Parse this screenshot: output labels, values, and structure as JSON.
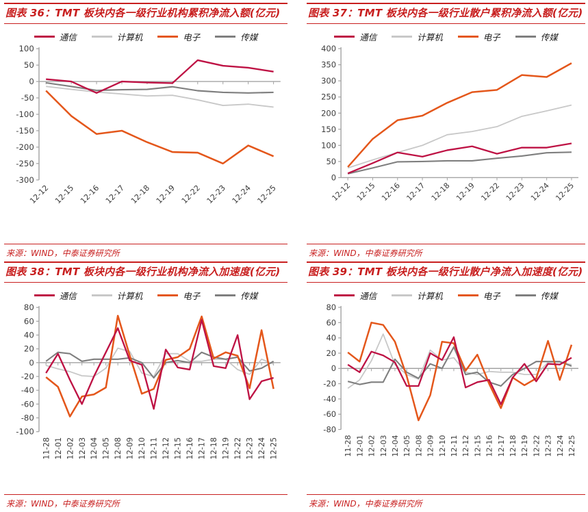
{
  "page": {
    "background": "#FFFFFF"
  },
  "colors": {
    "accent_red": "#C81E1E",
    "axis": "#A3A3A3",
    "tick_text": "#3D3D3D",
    "series": {
      "tongxin": "#BE1244",
      "jisuanji": "#C8C8C8",
      "dianzi": "#E4571B",
      "chuanmei": "#7F7F7F"
    }
  },
  "legend": [
    "通信",
    "计算机",
    "电子",
    "传媒"
  ],
  "source_label": "来源：WIND，中泰证券研究所",
  "chart_data": [
    {
      "id": "figure-36",
      "type": "line",
      "title": "图表 36：TMT 板块内各一级行业机构累积净流入额(亿元)",
      "xlabel": "",
      "ylabel": "",
      "grid": false,
      "legend_position": "top",
      "ylim": [
        -300,
        100
      ],
      "ystep": 50,
      "x_label_rotation": -45,
      "categories": [
        "12-12",
        "12-15",
        "12-16",
        "12-17",
        "12-18",
        "12-19",
        "12-22",
        "12-23",
        "12-24",
        "12-25"
      ],
      "series": [
        {
          "name": "通信",
          "color_key": "tongxin",
          "values": [
            7,
            0,
            -35,
            0,
            -3,
            -5,
            65,
            48,
            42,
            30
          ]
        },
        {
          "name": "计算机",
          "color_key": "jisuanji",
          "values": [
            -15,
            -24,
            -32,
            -38,
            -44,
            -42,
            -56,
            -73,
            -69,
            -78
          ]
        },
        {
          "name": "电子",
          "color_key": "dianzi",
          "values": [
            -28,
            -105,
            -160,
            -150,
            -185,
            -215,
            -217,
            -250,
            -195,
            -228
          ]
        },
        {
          "name": "传媒",
          "color_key": "chuanmei",
          "values": [
            -4,
            -15,
            -27,
            -25,
            -24,
            -16,
            -28,
            -33,
            -35,
            -33
          ]
        }
      ]
    },
    {
      "id": "figure-37",
      "type": "line",
      "title": "图表 37：TMT 板块内各一级行业散户累积净流入额(亿元)",
      "xlabel": "",
      "ylabel": "",
      "grid": false,
      "legend_position": "top",
      "ylim": [
        0,
        400
      ],
      "ystep": 50,
      "x_label_rotation": -45,
      "categories": [
        "12-12",
        "12-15",
        "12-16",
        "12-17",
        "12-18",
        "12-19",
        "12-22",
        "12-23",
        "12-24",
        "12-25"
      ],
      "series": [
        {
          "name": "通信",
          "color_key": "tongxin",
          "values": [
            13,
            45,
            78,
            65,
            85,
            97,
            74,
            93,
            93,
            106
          ]
        },
        {
          "name": "计算机",
          "color_key": "jisuanji",
          "values": [
            30,
            55,
            78,
            100,
            133,
            143,
            158,
            190,
            207,
            225
          ]
        },
        {
          "name": "电子",
          "color_key": "dianzi",
          "values": [
            33,
            120,
            178,
            192,
            232,
            265,
            272,
            318,
            312,
            355
          ]
        },
        {
          "name": "传媒",
          "color_key": "chuanmei",
          "values": [
            12,
            30,
            49,
            50,
            52,
            52,
            60,
            67,
            77,
            79
          ]
        }
      ]
    },
    {
      "id": "figure-38",
      "type": "line",
      "title": "图表 38：TMT 板块内各一级行业机构净流入加速度(亿元)",
      "xlabel": "",
      "ylabel": "",
      "grid": false,
      "legend_position": "top",
      "ylim": [
        -100,
        80
      ],
      "ystep": 20,
      "x_label_rotation": -90,
      "categories": [
        "11-28",
        "12-01",
        "12-02",
        "12-03",
        "12-04",
        "12-05",
        "12-08",
        "12-09",
        "12-10",
        "12-11",
        "12-12",
        "12-15",
        "12-16",
        "12-17",
        "12-18",
        "12-19",
        "12-22",
        "12-23",
        "12-24",
        "12-25"
      ],
      "series": [
        {
          "name": "通信",
          "color_key": "tongxin",
          "values": [
            -15,
            13,
            -25,
            -60,
            -20,
            15,
            50,
            3,
            -3,
            -67,
            19,
            -7,
            -10,
            62,
            -5,
            -8,
            40,
            -53,
            -27,
            -22
          ]
        },
        {
          "name": "计算机",
          "color_key": "jisuanji",
          "values": [
            -4,
            -9,
            -13,
            -19,
            -20,
            -8,
            21,
            16,
            -15,
            -20,
            13,
            13,
            2,
            2,
            5,
            5,
            -10,
            -17,
            5,
            -2
          ]
        },
        {
          "name": "电子",
          "color_key": "dianzi",
          "values": [
            -21,
            -35,
            -78,
            -49,
            -46,
            -36,
            68,
            10,
            -45,
            -38,
            4,
            8,
            20,
            67,
            6,
            15,
            10,
            -37,
            47,
            -38
          ]
        },
        {
          "name": "传媒",
          "color_key": "chuanmei",
          "values": [
            2,
            15,
            13,
            2,
            5,
            5,
            5,
            7,
            0,
            -22,
            0,
            3,
            0,
            15,
            8,
            5,
            8,
            -12,
            -8,
            2
          ]
        }
      ]
    },
    {
      "id": "figure-39",
      "type": "line",
      "title": "图表 39：TMT 板块内各一级行业散户净流入加速度(亿元)",
      "xlabel": "",
      "ylabel": "",
      "grid": false,
      "legend_position": "top",
      "ylim": [
        -80,
        80
      ],
      "ystep": 20,
      "x_label_rotation": -90,
      "categories": [
        "11-28",
        "12-01",
        "12-02",
        "12-03",
        "12-04",
        "12-05",
        "12-08",
        "12-09",
        "12-10",
        "12-11",
        "12-12",
        "12-15",
        "12-16",
        "12-17",
        "12-18",
        "12-19",
        "12-22",
        "12-23",
        "12-24",
        "12-25"
      ],
      "series": [
        {
          "name": "通信",
          "color_key": "tongxin",
          "values": [
            5,
            -5,
            22,
            17,
            8,
            -23,
            -23,
            20,
            11,
            41,
            -25,
            -18,
            -15,
            -47,
            -12,
            6,
            -17,
            6,
            5,
            14
          ]
        },
        {
          "name": "计算机",
          "color_key": "jisuanji",
          "values": [
            -26,
            -15,
            10,
            45,
            5,
            -8,
            -14,
            24,
            11,
            14,
            -5,
            -8,
            -4,
            -5,
            -5,
            -8,
            -8,
            8,
            8,
            5
          ]
        },
        {
          "name": "电子",
          "color_key": "dianzi",
          "values": [
            21,
            9,
            60,
            57,
            35,
            -10,
            -68,
            -35,
            35,
            33,
            -3,
            18,
            -20,
            -52,
            -12,
            -22,
            -13,
            36,
            -15,
            31
          ]
        },
        {
          "name": "传媒",
          "color_key": "chuanmei",
          "values": [
            -17,
            -21,
            -18,
            -18,
            12,
            -5,
            -13,
            6,
            0,
            28,
            -8,
            -5,
            -18,
            -23,
            -8,
            0,
            9,
            9,
            9,
            3
          ]
        }
      ]
    }
  ]
}
